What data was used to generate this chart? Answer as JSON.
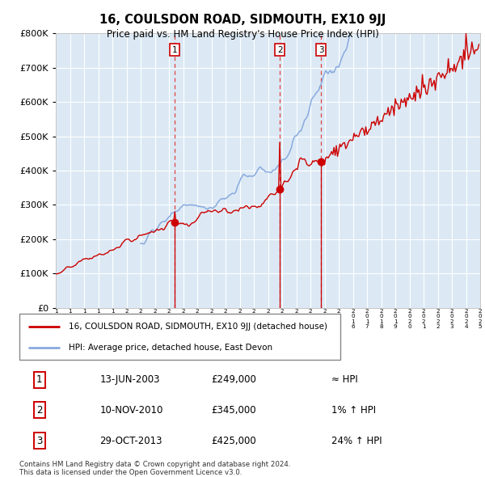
{
  "title": "16, COULSDON ROAD, SIDMOUTH, EX10 9JJ",
  "subtitle": "Price paid vs. HM Land Registry's House Price Index (HPI)",
  "red_label": "16, COULSDON ROAD, SIDMOUTH, EX10 9JJ (detached house)",
  "blue_label": "HPI: Average price, detached house, East Devon",
  "sale1_date": "13-JUN-2003",
  "sale1_price": 249000,
  "sale1_hpi": "≈ HPI",
  "sale2_date": "10-NOV-2010",
  "sale2_price": 345000,
  "sale2_hpi": "1% ↑ HPI",
  "sale3_date": "29-OCT-2013",
  "sale3_price": 425000,
  "sale3_hpi": "24% ↑ HPI",
  "footer1": "Contains HM Land Registry data © Crown copyright and database right 2024.",
  "footer2": "This data is licensed under the Open Government Licence v3.0.",
  "bg_color": "#dce9f5",
  "grid_color": "#ffffff",
  "red_color": "#cc0000",
  "blue_color": "#88aadd",
  "dashed_color": "#dd4444",
  "ylim_max": 800000,
  "ylim_min": 0,
  "start_year": 1995,
  "end_year": 2025,
  "sale1_year": 2003,
  "sale1_month": 5,
  "sale2_year": 2010,
  "sale2_month": 10,
  "sale3_year": 2013,
  "sale3_month": 9
}
